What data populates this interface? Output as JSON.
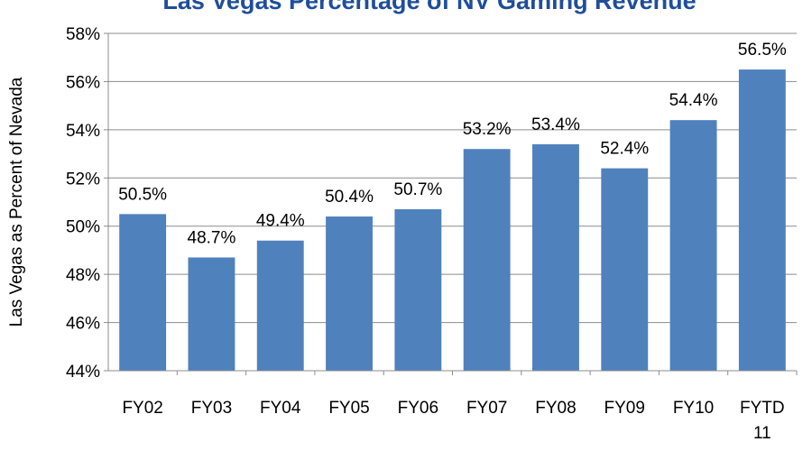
{
  "chart_data": {
    "type": "bar",
    "title": "Las Vegas Percentage of NV Gaming Revenue",
    "xlabel": "",
    "ylabel": "Las Vegas as Percent of Nevada",
    "ylim": [
      44,
      58
    ],
    "y_ticks": [
      44,
      46,
      48,
      50,
      52,
      54,
      56,
      58
    ],
    "y_tick_labels": [
      "44%",
      "46%",
      "48%",
      "50%",
      "52%",
      "54%",
      "56%",
      "58%"
    ],
    "grid": true,
    "legend": "none",
    "categories": [
      [
        "FY02"
      ],
      [
        "FY03"
      ],
      [
        "FY04"
      ],
      [
        "FY05"
      ],
      [
        "FY06"
      ],
      [
        "FY07"
      ],
      [
        "FY08"
      ],
      [
        "FY09"
      ],
      [
        "FY10"
      ],
      [
        "FYTD",
        "11"
      ]
    ],
    "values": [
      50.5,
      48.7,
      49.4,
      50.4,
      50.7,
      53.2,
      53.4,
      52.4,
      54.4,
      56.5
    ],
    "data_labels": [
      "50.5%",
      "48.7%",
      "49.4%",
      "50.4%",
      "50.7%",
      "53.2%",
      "53.4%",
      "52.4%",
      "54.4%",
      "56.5%"
    ],
    "colors": {
      "bar": "#4F81BD",
      "title": "#1F4E9A",
      "grid": "#8C8C8C",
      "axis": "#8C8C8C"
    }
  }
}
